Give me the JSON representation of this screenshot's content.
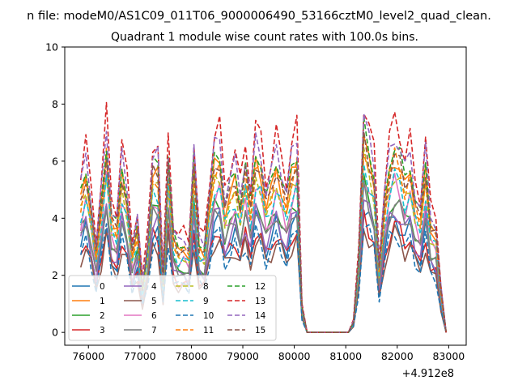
{
  "figure": {
    "suptitle": "n file: modeM0/AS1C09_011T06_9000006490_53166cztM0_level2_quad_clean.",
    "offset_label": "+4.912e8"
  },
  "chart_data": {
    "type": "line",
    "title": "Quadrant 1 module wise count rates with 100.0s bins.",
    "xlabel": "",
    "ylabel": "",
    "x_offset": 491200000,
    "xlim": [
      75540,
      83340
    ],
    "ylim": [
      -0.45,
      10
    ],
    "x_ticks": [
      76000,
      77000,
      78000,
      79000,
      80000,
      81000,
      82000,
      83000
    ],
    "x_tick_labels": [
      "76000",
      "77000",
      "78000",
      "79000",
      "80000",
      "81000",
      "82000",
      "83000"
    ],
    "y_ticks": [
      0,
      2,
      4,
      6,
      8,
      10
    ],
    "y_tick_labels": [
      "0",
      "2",
      "4",
      "6",
      "8",
      "10"
    ],
    "grid": false,
    "legend_placement": "lower-left",
    "legend_columns": 4,
    "x": [
      75850,
      75950,
      76050,
      76150,
      76250,
      76350,
      76450,
      76550,
      76650,
      76750,
      76850,
      76950,
      77050,
      77150,
      77250,
      77350,
      77450,
      77550,
      77650,
      77750,
      77850,
      77950,
      78050,
      78150,
      78250,
      78350,
      78450,
      78550,
      78650,
      78750,
      78850,
      78950,
      79050,
      79150,
      79250,
      79350,
      79450,
      79550,
      79650,
      79750,
      79850,
      79950,
      80050,
      80150,
      80250,
      80350,
      80450,
      80550,
      80650,
      80750,
      80850,
      80950,
      81050,
      81150,
      81250,
      81350,
      81450,
      81550,
      81650,
      81750,
      81850,
      81950,
      82050,
      82150,
      82250,
      82350,
      82450,
      82550,
      82650,
      82750,
      82850,
      82950
    ],
    "profile": [
      0.65,
      0.78,
      0.6,
      0.38,
      0.62,
      0.9,
      0.55,
      0.5,
      0.78,
      0.65,
      0.38,
      0.5,
      0.22,
      0.42,
      0.78,
      0.78,
      0.25,
      0.82,
      0.45,
      0.4,
      0.42,
      0.38,
      0.8,
      0.42,
      0.4,
      0.62,
      0.82,
      0.85,
      0.6,
      0.68,
      0.75,
      0.62,
      0.78,
      0.6,
      0.85,
      0.8,
      0.62,
      0.7,
      0.82,
      0.72,
      0.62,
      0.78,
      0.85,
      0.12,
      0,
      0,
      0,
      0,
      0,
      0,
      0,
      0,
      0,
      0.05,
      0.35,
      0.95,
      0.85,
      0.75,
      0.3,
      0.6,
      0.8,
      0.88,
      0.82,
      0.72,
      0.8,
      0.62,
      0.55,
      0.8,
      0.52,
      0.48,
      0.2,
      0
    ],
    "series": [
      {
        "name": "0",
        "color": "#1f77b4",
        "dash": "solid",
        "base": 4.6,
        "phase": 0.0
      },
      {
        "name": "1",
        "color": "#ff7f0e",
        "dash": "solid",
        "base": 7.0,
        "phase": 1.3
      },
      {
        "name": "2",
        "color": "#2ca02c",
        "dash": "solid",
        "base": 5.4,
        "phase": 2.1
      },
      {
        "name": "3",
        "color": "#d62728",
        "dash": "solid",
        "base": 4.3,
        "phase": 3.4
      },
      {
        "name": "4",
        "color": "#9467bd",
        "dash": "solid",
        "base": 4.9,
        "phase": 0.7
      },
      {
        "name": "5",
        "color": "#8c564b",
        "dash": "solid",
        "base": 3.9,
        "phase": 4.2
      },
      {
        "name": "6",
        "color": "#e377c2",
        "dash": "solid",
        "base": 5.9,
        "phase": 5.0
      },
      {
        "name": "7",
        "color": "#7f7f7f",
        "dash": "solid",
        "base": 5.2,
        "phase": 2.8
      },
      {
        "name": "8",
        "color": "#bcbd22",
        "dash": "dashed",
        "base": 6.4,
        "phase": 1.9
      },
      {
        "name": "9",
        "color": "#17becf",
        "dash": "dashed",
        "base": 6.2,
        "phase": 3.9
      },
      {
        "name": "10",
        "color": "#1f77b4",
        "dash": "dashed",
        "base": 4.0,
        "phase": 0.4
      },
      {
        "name": "11",
        "color": "#ff7f0e",
        "dash": "dashed",
        "base": 6.9,
        "phase": 4.7
      },
      {
        "name": "12",
        "color": "#2ca02c",
        "dash": "dashed",
        "base": 7.5,
        "phase": 2.5
      },
      {
        "name": "13",
        "color": "#d62728",
        "dash": "dashed",
        "base": 8.5,
        "phase": 5.6
      },
      {
        "name": "14",
        "color": "#9467bd",
        "dash": "dashed",
        "base": 7.9,
        "phase": 1.1
      },
      {
        "name": "15",
        "color": "#8c564b",
        "dash": "dashed",
        "base": 7.1,
        "phase": 3.1
      }
    ]
  }
}
